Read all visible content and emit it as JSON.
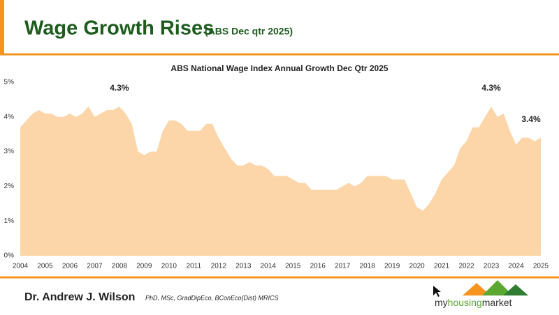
{
  "header": {
    "title": "Wage Growth Rises",
    "subtitle": "(ABS Dec qtr 2025)"
  },
  "chart_data": {
    "type": "area",
    "title": "ABS National Wage Index Annual Growth Dec Qtr 2025",
    "color": "#fcd5a9",
    "x": [
      2004,
      2004.25,
      2004.5,
      2004.75,
      2005,
      2005.25,
      2005.5,
      2005.75,
      2006,
      2006.25,
      2006.5,
      2006.75,
      2007,
      2007.25,
      2007.5,
      2007.75,
      2008,
      2008.25,
      2008.5,
      2008.75,
      2009,
      2009.25,
      2009.5,
      2009.75,
      2010,
      2010.25,
      2010.5,
      2010.75,
      2011,
      2011.25,
      2011.5,
      2011.75,
      2012,
      2012.25,
      2012.5,
      2012.75,
      2013,
      2013.25,
      2013.5,
      2013.75,
      2014,
      2014.25,
      2014.5,
      2014.75,
      2015,
      2015.25,
      2015.5,
      2015.75,
      2016,
      2016.25,
      2016.5,
      2016.75,
      2017,
      2017.25,
      2017.5,
      2017.75,
      2018,
      2018.25,
      2018.5,
      2018.75,
      2019,
      2019.25,
      2019.5,
      2019.75,
      2020,
      2020.25,
      2020.5,
      2020.75,
      2021,
      2021.25,
      2021.5,
      2021.75,
      2022,
      2022.25,
      2022.5,
      2022.75,
      2023,
      2023.25,
      2023.5,
      2023.75,
      2024,
      2024.25,
      2024.5,
      2024.75,
      2025
    ],
    "values": [
      3.7,
      3.9,
      4.1,
      4.2,
      4.1,
      4.1,
      4.0,
      4.0,
      4.1,
      4.0,
      4.1,
      4.3,
      4.0,
      4.1,
      4.2,
      4.2,
      4.3,
      4.1,
      3.8,
      3.0,
      2.9,
      3.0,
      3.0,
      3.6,
      3.9,
      3.9,
      3.8,
      3.6,
      3.6,
      3.6,
      3.8,
      3.8,
      3.4,
      3.1,
      2.8,
      2.6,
      2.6,
      2.7,
      2.6,
      2.6,
      2.5,
      2.3,
      2.3,
      2.3,
      2.2,
      2.1,
      2.1,
      1.9,
      1.9,
      1.9,
      1.9,
      1.9,
      2.0,
      2.1,
      2.0,
      2.1,
      2.3,
      2.3,
      2.3,
      2.3,
      2.2,
      2.2,
      2.2,
      1.8,
      1.4,
      1.3,
      1.5,
      1.8,
      2.2,
      2.4,
      2.6,
      3.1,
      3.3,
      3.7,
      3.7,
      4.0,
      4.3,
      4.0,
      4.1,
      3.6,
      3.2,
      3.4,
      3.4,
      3.3,
      3.4
    ],
    "xlim": [
      2004,
      2025
    ],
    "xticks": [
      2004,
      2005,
      2006,
      2007,
      2008,
      2009,
      2010,
      2011,
      2012,
      2013,
      2014,
      2015,
      2016,
      2017,
      2018,
      2019,
      2020,
      2021,
      2022,
      2023,
      2024,
      2025
    ],
    "ylim": [
      0,
      5
    ],
    "yticks": [
      {
        "value": 0,
        "label": "0%"
      },
      {
        "value": 1,
        "label": "1%"
      },
      {
        "value": 2,
        "label": "2%"
      },
      {
        "value": 3,
        "label": "3%"
      },
      {
        "value": 4,
        "label": "4%"
      },
      {
        "value": 5,
        "label": "5%"
      }
    ],
    "annotations": [
      {
        "x": 2008,
        "value": 4.3,
        "label": "4.3%"
      },
      {
        "x": 2023,
        "value": 4.3,
        "label": "4.3%"
      },
      {
        "x": 2025,
        "value": 3.4,
        "label": "3.4%"
      }
    ]
  },
  "footer": {
    "author": "Dr. Andrew J. Wilson",
    "credentials": "PhD, MSc, GradDipEco, BConEco(Dist) MRICS",
    "logo_prefix": "my",
    "logo_mid": "housing",
    "logo_suffix": "market"
  }
}
